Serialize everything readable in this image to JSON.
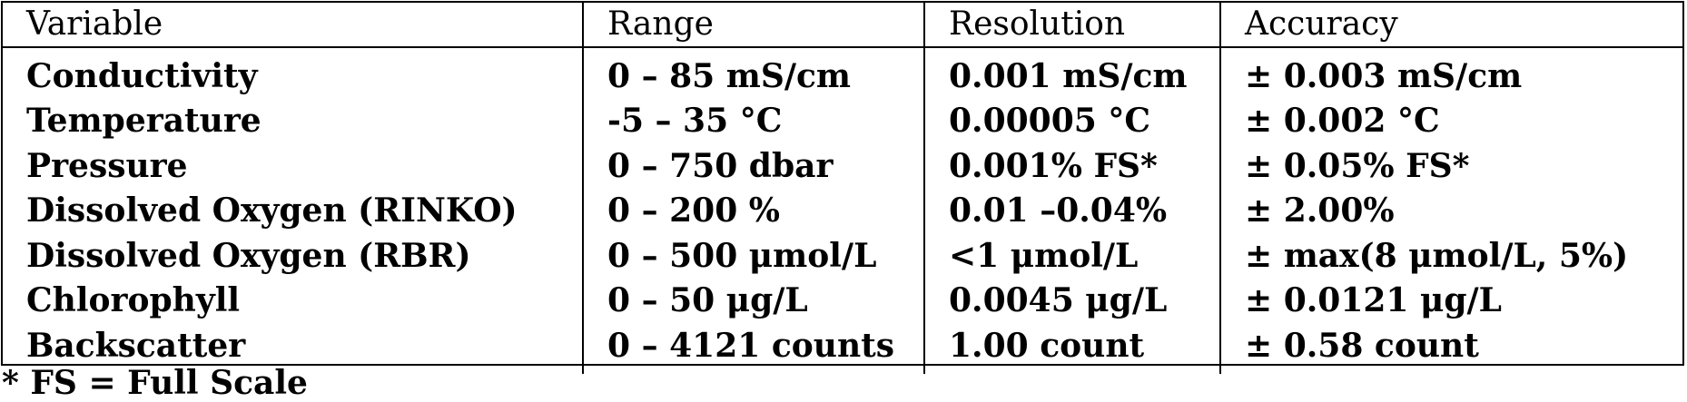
{
  "table": {
    "headers": [
      "Variable",
      "Range",
      "Resolution",
      "Accuracy"
    ],
    "rows": [
      [
        "Conductivity",
        "0 – 85 mS/cm",
        "0.001 mS/cm",
        "± 0.003 mS/cm"
      ],
      [
        "Temperature",
        "-5 – 35 °C",
        "0.00005 °C",
        "± 0.002 °C"
      ],
      [
        "Pressure",
        "0 – 750 dbar",
        "0.001% FS*",
        "± 0.05% FS*"
      ],
      [
        "Dissolved Oxygen (RINKO)",
        "0 – 200 %",
        "0.01 –0.04%",
        "± 2.00%"
      ],
      [
        "Dissolved Oxygen (RBR)",
        "0 – 500 μmol/L",
        "<1 μmol/L",
        "± max(8 μmol/L, 5%)"
      ],
      [
        "Chlorophyll",
        "0 – 50 μg/L",
        "0.0045 μg/L",
        "± 0.0121 μg/L"
      ],
      [
        "Backscatter",
        "0 – 4121 counts",
        "1.00 count",
        "± 0.58 count"
      ]
    ]
  },
  "footnote": "* FS = Full Scale"
}
